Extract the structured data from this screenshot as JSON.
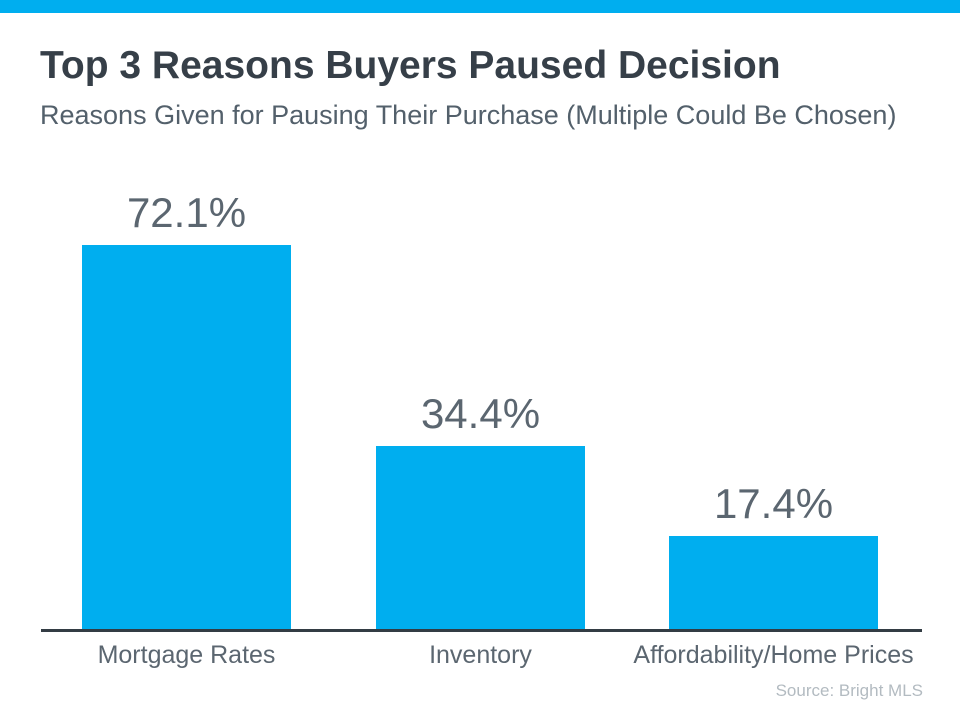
{
  "colors": {
    "accent": "#00AEEF",
    "title": "#363F48",
    "subtitle": "#53606B",
    "label": "#5B6670",
    "axis": "#333C44",
    "source": "#B3BBC1"
  },
  "chart_data": {
    "type": "bar",
    "title": "Top 3 Reasons Buyers Paused Decision",
    "subtitle": "Reasons Given for Pausing Their Purchase (Multiple Could Be Chosen)",
    "categories": [
      "Mortgage Rates",
      "Inventory",
      "Affordability/Home Prices"
    ],
    "values": [
      72.1,
      34.4,
      17.4
    ],
    "value_labels": [
      "72.1%",
      "34.4%",
      "17.4%"
    ],
    "ylabel": "",
    "xlabel": "",
    "ylim": [
      0,
      80
    ],
    "grid": false,
    "legend": false,
    "bar_color": "#00AEEF",
    "source": "Source: Bright MLS"
  }
}
